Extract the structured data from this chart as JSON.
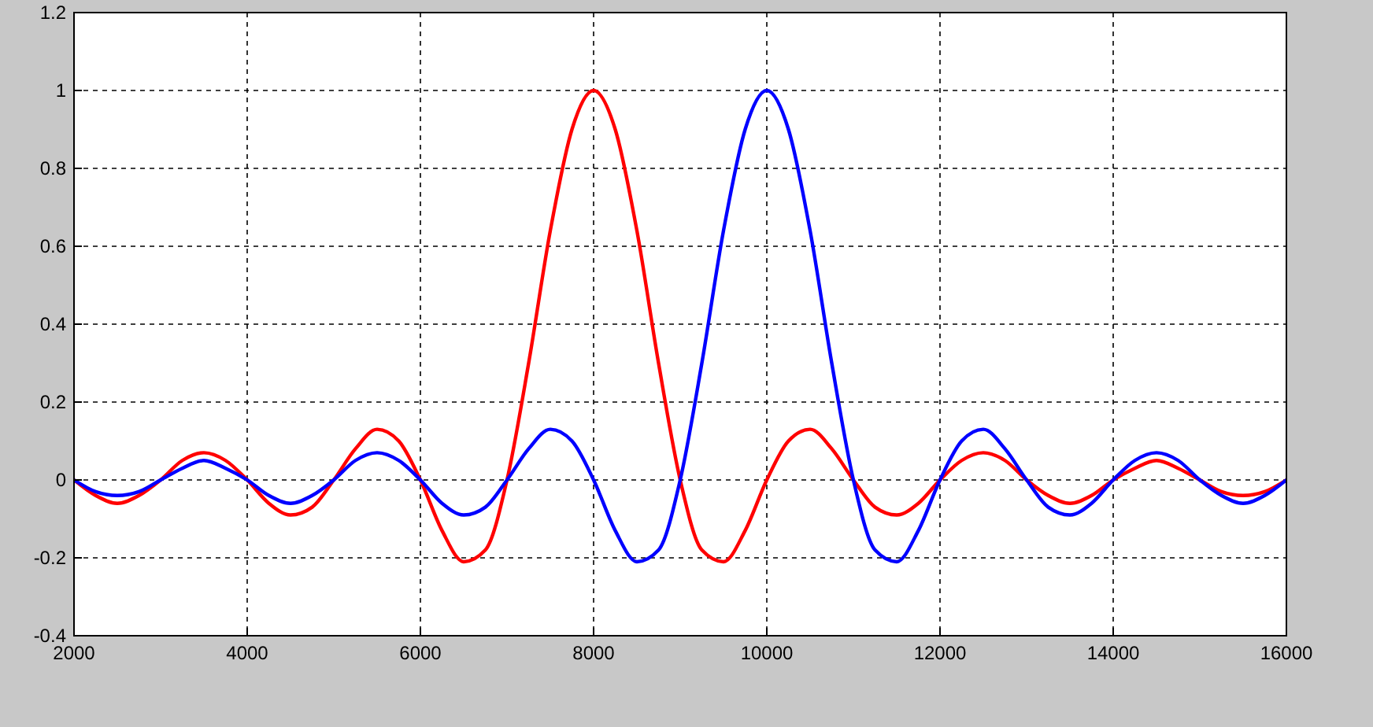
{
  "chart_data": {
    "type": "line",
    "xlim": [
      2000,
      16000
    ],
    "xticks": [
      2000,
      4000,
      6000,
      8000,
      10000,
      12000,
      14000,
      16000
    ],
    "ylim": [
      -0.4,
      1.2
    ],
    "yticks": [
      -0.4,
      -0.2,
      0,
      0.2,
      0.4,
      0.6,
      0.8,
      1,
      1.2
    ],
    "grid": true,
    "line_style": "solid",
    "x": [
      2000,
      2250,
      2500,
      2750,
      3000,
      3250,
      3500,
      3750,
      4000,
      4250,
      4500,
      4750,
      5000,
      5250,
      5500,
      5750,
      6000,
      6250,
      6500,
      6750,
      7000,
      7250,
      7500,
      7750,
      8000,
      8250,
      8500,
      8750,
      9000,
      9250,
      9500,
      9750,
      10000,
      10250,
      10500,
      10750,
      11000,
      11250,
      11500,
      11750,
      12000,
      12250,
      12500,
      12750,
      13000,
      13250,
      13500,
      13750,
      14000,
      14250,
      14500,
      14750,
      15000,
      15250,
      15500,
      15750,
      16000
    ],
    "series": [
      {
        "color": "#ff0000",
        "values": [
          0,
          -0.04,
          -0.06,
          -0.04,
          0,
          0.05,
          0.07,
          0.05,
          0,
          -0.06,
          -0.09,
          -0.07,
          0,
          0.08,
          0.13,
          0.1,
          0,
          -0.13,
          -0.21,
          -0.18,
          0,
          0.3,
          0.64,
          0.9,
          1,
          0.9,
          0.64,
          0.3,
          0,
          -0.18,
          -0.21,
          -0.13,
          0,
          0.1,
          0.13,
          0.08,
          0,
          -0.07,
          -0.09,
          -0.06,
          0,
          0.05,
          0.07,
          0.05,
          0,
          -0.04,
          -0.06,
          -0.04,
          0,
          0.03,
          0.05,
          0.03,
          0,
          -0.03,
          -0.04,
          -0.03,
          0
        ]
      },
      {
        "color": "#0000ff",
        "values": [
          0,
          -0.03,
          -0.04,
          -0.03,
          0,
          0.03,
          0.05,
          0.03,
          0,
          -0.04,
          -0.06,
          -0.04,
          0,
          0.05,
          0.07,
          0.05,
          0,
          -0.06,
          -0.09,
          -0.07,
          0,
          0.08,
          0.13,
          0.1,
          0,
          -0.13,
          -0.21,
          -0.18,
          0,
          0.3,
          0.64,
          0.9,
          1,
          0.9,
          0.64,
          0.3,
          0,
          -0.18,
          -0.21,
          -0.13,
          0,
          0.1,
          0.13,
          0.08,
          0,
          -0.07,
          -0.09,
          -0.06,
          0,
          0.05,
          0.07,
          0.05,
          0,
          -0.04,
          -0.06,
          -0.04,
          0
        ]
      }
    ]
  }
}
